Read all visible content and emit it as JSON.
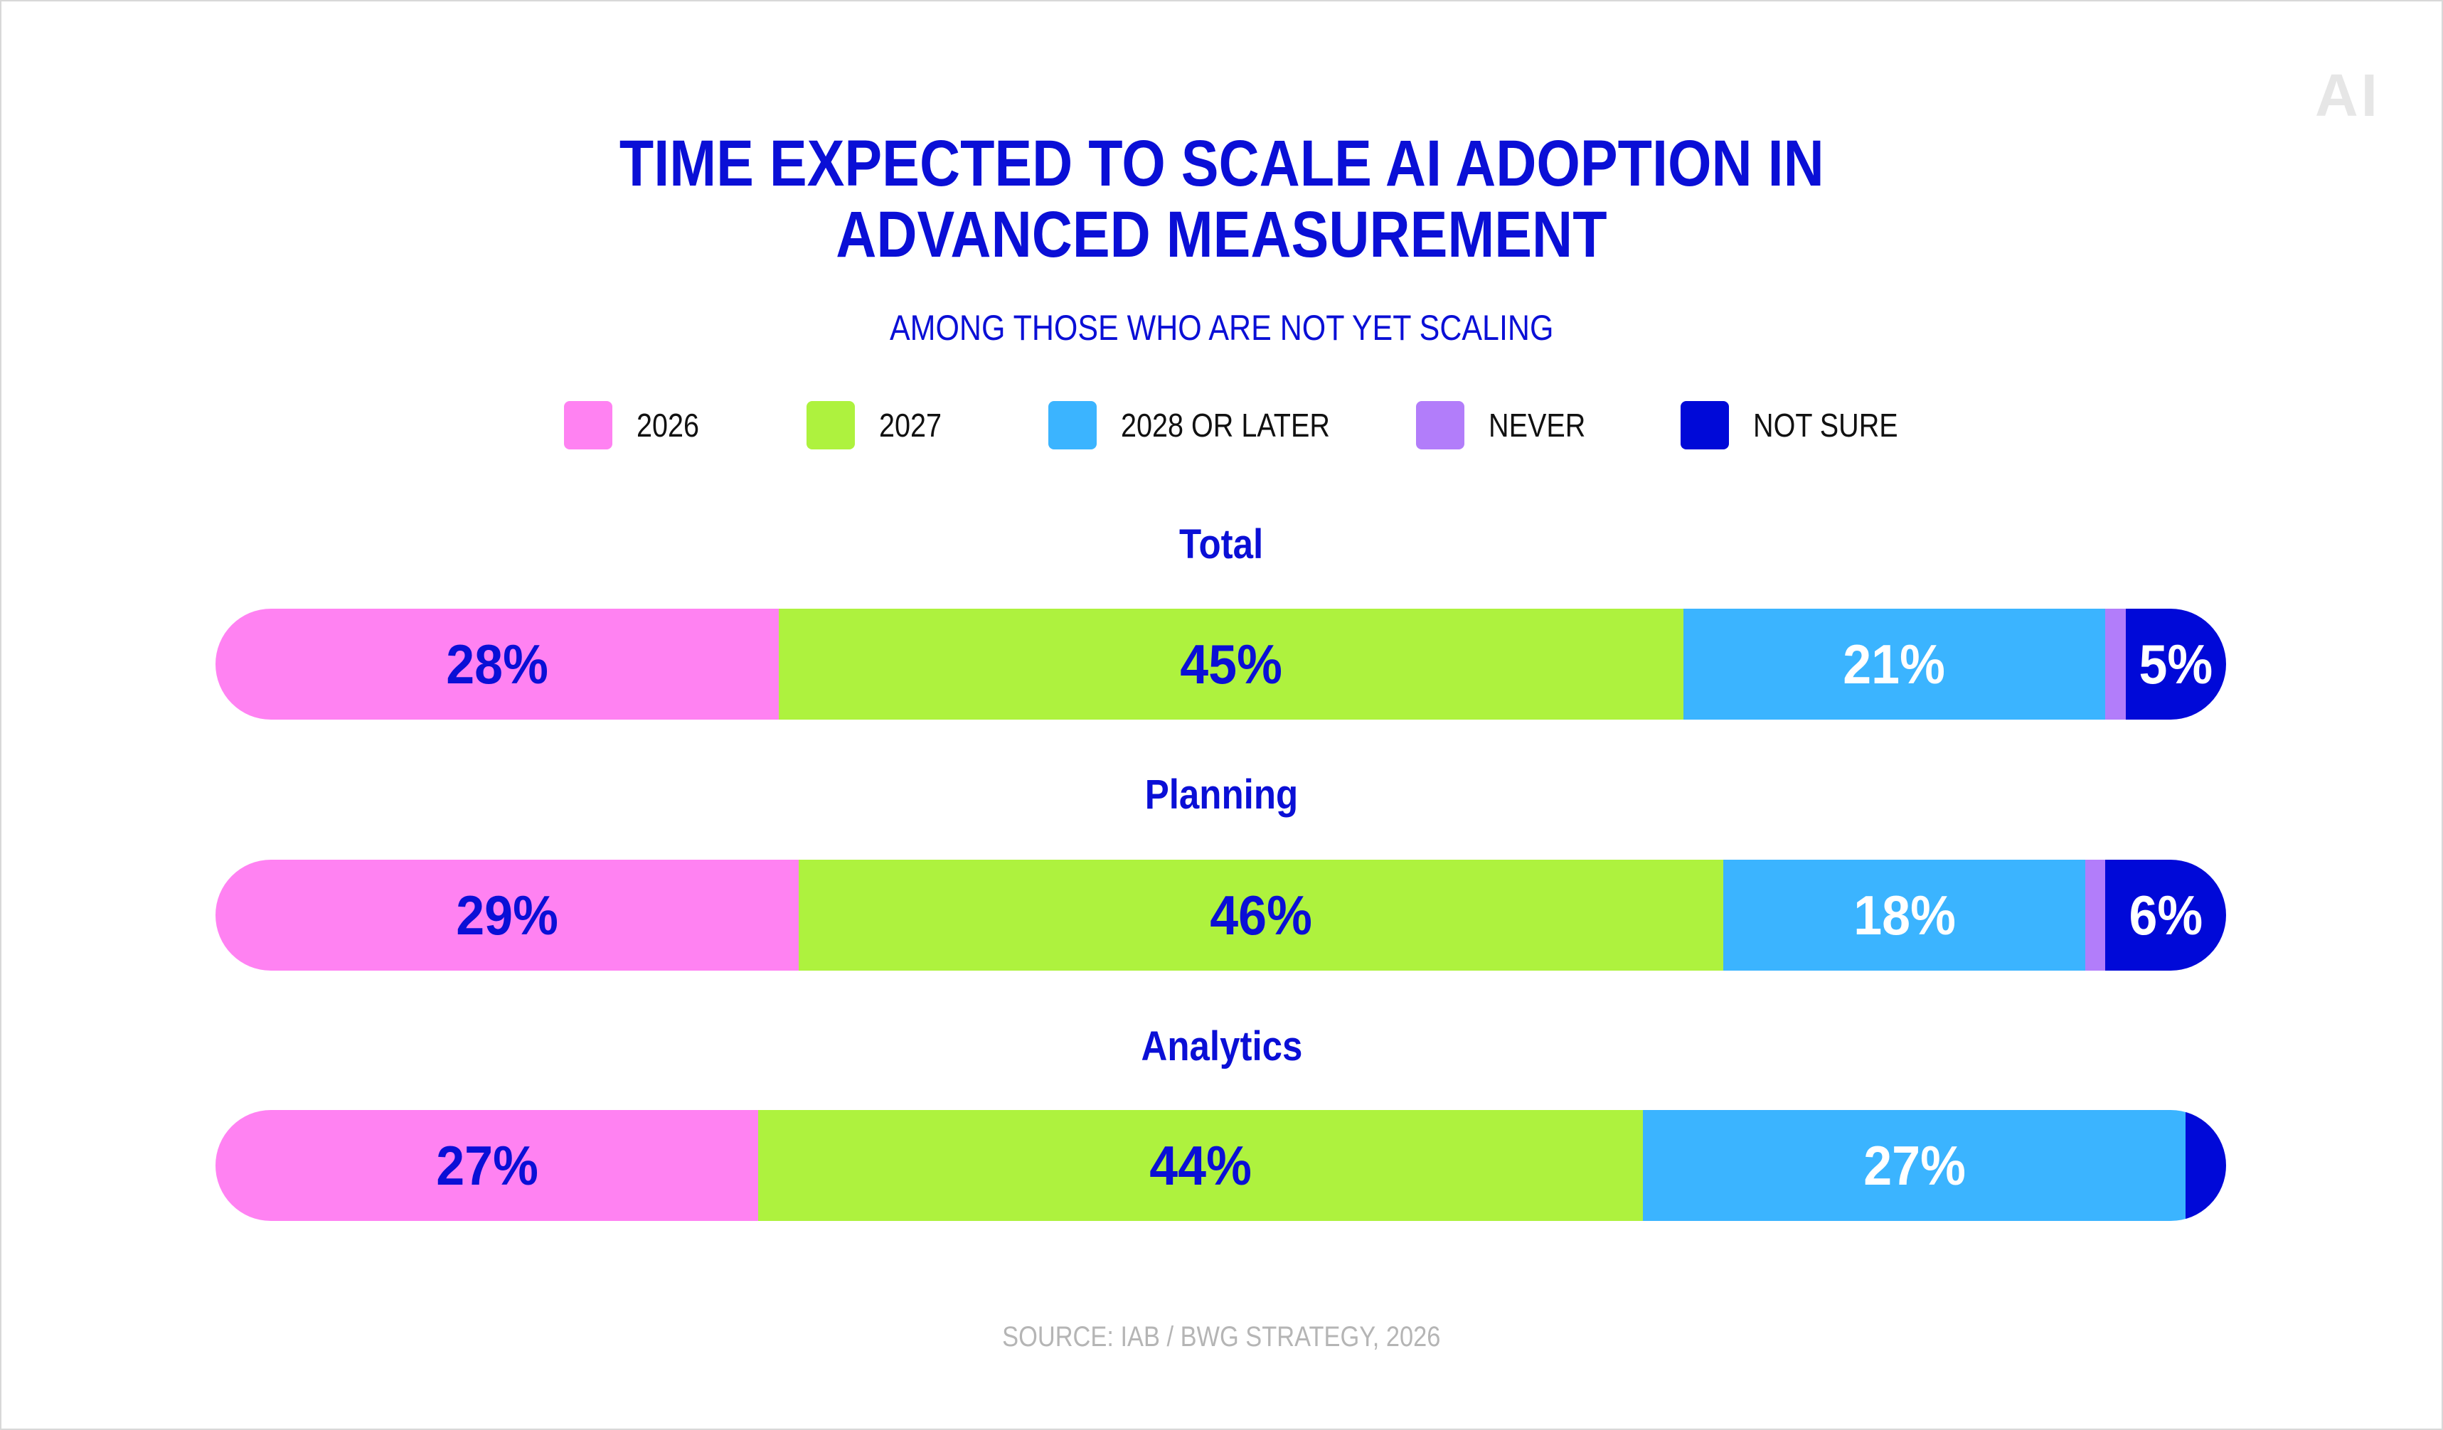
{
  "logo": "AI",
  "chart_data": {
    "type": "bar",
    "orientation": "horizontal-stacked-100",
    "title": "TIME EXPECTED TO SCALE AI ADOPTION IN ADVANCED MEASUREMENT",
    "title_lines": [
      "TIME EXPECTED TO SCALE AI ADOPTION IN",
      "ADVANCED MEASUREMENT"
    ],
    "subtitle": "AMONG THOSE WHO ARE NOT YET SCALING",
    "legend_placement": "top",
    "legend": [
      {
        "name": "2026",
        "color": "#ff82f2"
      },
      {
        "name": "2027",
        "color": "#aef23e"
      },
      {
        "name": "2028 OR LATER",
        "color": "#3bb4ff"
      },
      {
        "name": "NEVER",
        "color": "#b27dfa"
      },
      {
        "name": "NOT SURE",
        "color": "#0009d8"
      }
    ],
    "categories": [
      "Total",
      "Planning",
      "Analytics"
    ],
    "series": [
      {
        "name": "2026",
        "values": [
          28,
          29,
          27
        ],
        "labels": [
          "28%",
          "29%",
          "27%"
        ],
        "label_color": "#0a0fd6"
      },
      {
        "name": "2027",
        "values": [
          45,
          46,
          44
        ],
        "labels": [
          "45%",
          "46%",
          "44%"
        ],
        "label_color": "#0a0fd6"
      },
      {
        "name": "2028 OR LATER",
        "values": [
          21,
          18,
          27
        ],
        "labels": [
          "21%",
          "18%",
          "27%"
        ],
        "label_color": "#ffffff"
      },
      {
        "name": "NEVER",
        "values": [
          1,
          1,
          0
        ],
        "labels": [
          "",
          "",
          ""
        ],
        "label_color": "#ffffff"
      },
      {
        "name": "NOT SURE",
        "values": [
          5,
          6,
          2
        ],
        "labels": [
          "5%",
          "6%",
          ""
        ],
        "label_color": "#ffffff"
      }
    ],
    "xlim": [
      0,
      100
    ],
    "grid": false
  },
  "source": "SOURCE: IAB / BWG STRATEGY, 2026"
}
